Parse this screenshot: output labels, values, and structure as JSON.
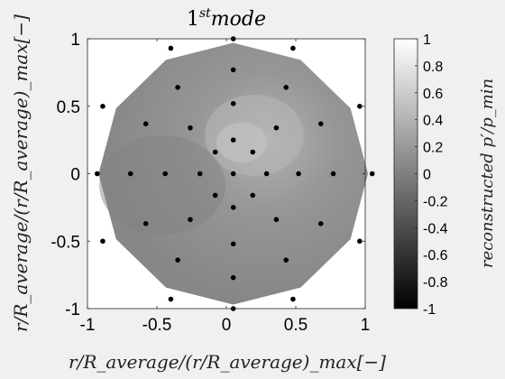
{
  "chart_data": {
    "type": "heatmap",
    "title_base": "1",
    "title_sup": "st",
    "title_rest": "mode",
    "xlabel": "r/R_average/(r/R_average)_max[−]",
    "ylabel": "r/R_average/(r/R_average)_max[−]",
    "xlim": [
      -1,
      1
    ],
    "ylim": [
      -1,
      1
    ],
    "x_ticks": [
      -1,
      -0.5,
      0,
      0.5,
      1
    ],
    "y_ticks": [
      -1,
      -0.5,
      0,
      0.5,
      1
    ],
    "x_tick_labels": [
      "-1",
      "-0.5",
      "0",
      "0.5",
      "1"
    ],
    "y_tick_labels": [
      "-1",
      "-0.5",
      "0",
      "0.5",
      "1"
    ],
    "colorbar": {
      "label": "reconstructed p′/p_min",
      "range": [
        -1,
        1
      ],
      "ticks": [
        1,
        0.8,
        0.6,
        0.4,
        0.2,
        0,
        -0.2,
        -0.4,
        -0.6,
        -0.8,
        -1
      ],
      "tick_labels": [
        "1",
        "0.8",
        "0.6",
        "0.4",
        "0.2",
        "0",
        "-0.2",
        "-0.4",
        "-0.6",
        "-0.8",
        "-1"
      ],
      "colormap": "gray"
    },
    "field_color_value": 0.05,
    "boundary": [
      [
        0,
        1
      ],
      [
        0.5,
        0.87
      ],
      [
        0.87,
        0.5
      ],
      [
        1,
        0
      ],
      [
        0.87,
        -0.5
      ],
      [
        0.5,
        -0.87
      ],
      [
        0,
        -1
      ],
      [
        -0.5,
        -0.87
      ],
      [
        -0.87,
        -0.5
      ],
      [
        -1,
        0
      ],
      [
        -0.87,
        0.5
      ],
      [
        -0.5,
        0.87
      ]
    ],
    "sensor_points": [
      [
        0.05,
        1.0
      ],
      [
        0.05,
        0.77
      ],
      [
        0.05,
        0.52
      ],
      [
        0.05,
        0.25
      ],
      [
        0.05,
        0.0
      ],
      [
        0.05,
        -0.25
      ],
      [
        0.05,
        -0.52
      ],
      [
        0.05,
        -0.77
      ],
      [
        0.05,
        -1.0
      ],
      [
        0.29,
        0.0
      ],
      [
        0.52,
        0.0
      ],
      [
        0.77,
        0.0
      ],
      [
        1.05,
        0.0
      ],
      [
        -0.19,
        0.0
      ],
      [
        -0.44,
        0.0
      ],
      [
        -0.69,
        0.0
      ],
      [
        -0.93,
        0.0
      ],
      [
        -0.4,
        0.93
      ],
      [
        0.48,
        0.93
      ],
      [
        -0.89,
        0.5
      ],
      [
        0.96,
        0.5
      ],
      [
        -0.35,
        0.64
      ],
      [
        0.43,
        0.64
      ],
      [
        -0.58,
        0.37
      ],
      [
        0.68,
        0.37
      ],
      [
        -0.26,
        0.34
      ],
      [
        0.36,
        0.34
      ],
      [
        -0.08,
        0.16
      ],
      [
        0.19,
        0.16
      ],
      [
        -0.08,
        -0.16
      ],
      [
        0.19,
        -0.16
      ],
      [
        -0.26,
        -0.34
      ],
      [
        0.36,
        -0.34
      ],
      [
        -0.58,
        -0.37
      ],
      [
        0.68,
        -0.37
      ],
      [
        -0.35,
        -0.64
      ],
      [
        0.43,
        -0.64
      ],
      [
        -0.89,
        -0.5
      ],
      [
        0.96,
        -0.5
      ],
      [
        -0.4,
        -0.93
      ],
      [
        0.48,
        -0.93
      ]
    ],
    "grid": false,
    "legend": "none"
  }
}
